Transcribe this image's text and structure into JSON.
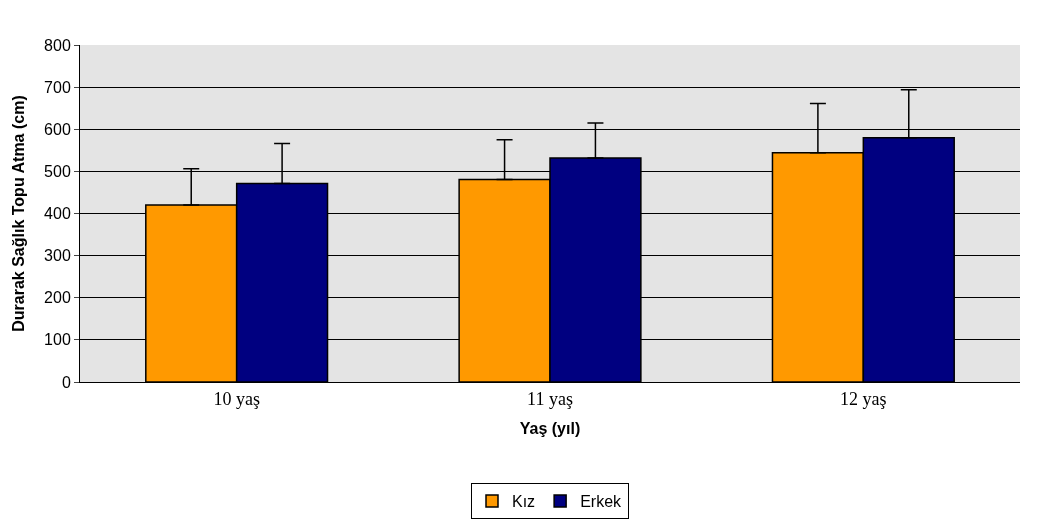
{
  "chart_data": {
    "type": "bar",
    "xlabel": "Yaş (yıl)",
    "ylabel": "Durarak Sağlık Topu Atma (cm)",
    "categories": [
      "10 yaş",
      "11 yaş",
      "12 yaş"
    ],
    "series": [
      {
        "name": "Kız",
        "color": "#ff9900",
        "values": [
          420,
          481,
          544
        ],
        "errors": [
          [
            420,
            506
          ],
          [
            481,
            575
          ],
          [
            544,
            661
          ]
        ]
      },
      {
        "name": "Erkek",
        "color": "#000080",
        "values": [
          471,
          532,
          580
        ],
        "errors": [
          [
            471,
            566
          ],
          [
            532,
            615
          ],
          [
            580,
            694
          ]
        ]
      }
    ],
    "ylim": [
      0,
      800
    ],
    "yticks": [
      0,
      100,
      200,
      300,
      400,
      500,
      600,
      700,
      800
    ],
    "grid": "y",
    "legend": "bottom"
  }
}
